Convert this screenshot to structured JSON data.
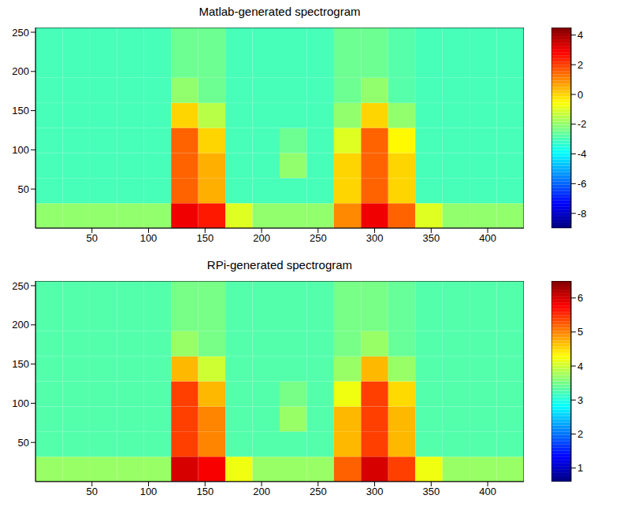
{
  "chart_data": [
    {
      "type": "heatmap",
      "title": "Matlab-generated spectrogram",
      "xlim": [
        0,
        432
      ],
      "xticks": [
        50,
        100,
        150,
        200,
        250,
        300,
        350,
        400
      ],
      "ylim": [
        0,
        256
      ],
      "yticks": [
        50,
        100,
        150,
        200,
        250
      ],
      "x_edges": [
        0,
        24,
        48,
        72,
        96,
        120,
        144,
        168,
        192,
        216,
        240,
        264,
        288,
        312,
        336,
        360,
        384,
        408,
        432
      ],
      "y_edges": [
        0,
        32,
        64,
        96,
        128,
        160,
        192,
        224,
        256
      ],
      "cells": [
        [
          -2,
          -2,
          -2,
          -2,
          -2,
          3,
          2.5,
          -1,
          -2,
          -2,
          -2,
          1,
          3,
          1.5,
          -1,
          -2,
          -2,
          -2
        ],
        [
          -3,
          -3,
          -3,
          -3,
          -3,
          1.5,
          0.5,
          -3,
          -3,
          -3,
          -3,
          0,
          1.5,
          0,
          -3,
          -3,
          -3,
          -3
        ],
        [
          -3,
          -3,
          -3,
          -3,
          -3,
          1.5,
          0.5,
          -3,
          -3,
          -2,
          -3,
          0,
          1.5,
          0,
          -3,
          -3,
          -3,
          -3
        ],
        [
          -3,
          -3,
          -3,
          -3,
          -3,
          1.5,
          0,
          -3,
          -3,
          -2.5,
          -3,
          -1,
          1.5,
          -0.5,
          -3,
          -3,
          -3,
          -3
        ],
        [
          -3,
          -3,
          -3,
          -3,
          -3,
          0,
          -1.5,
          -3,
          -3,
          -3,
          -3,
          -2,
          0,
          -2,
          -3,
          -3,
          -3,
          -3
        ],
        [
          -3,
          -3,
          -3,
          -3,
          -3,
          -2,
          -2.5,
          -3,
          -3,
          -3,
          -3,
          -2.5,
          -2,
          -2.8,
          -3,
          -3,
          -3,
          -3
        ],
        [
          -3,
          -3,
          -3,
          -3,
          -3,
          -2.5,
          -2.5,
          -3,
          -3,
          -3,
          -3,
          -2.5,
          -2.5,
          -2.8,
          -3,
          -3,
          -3,
          -3
        ],
        [
          -3,
          -3,
          -3,
          -3,
          -3,
          -2.5,
          -2.5,
          -3,
          -3,
          -3,
          -3,
          -2.5,
          -2.5,
          -2.8,
          -3,
          -3,
          -3,
          -3
        ]
      ],
      "colorbar_range": [
        -9,
        4.5
      ],
      "colorbar_ticks": [
        -8,
        -6,
        -4,
        -2,
        0,
        2,
        4
      ]
    },
    {
      "type": "heatmap",
      "title": "RPi-generated spectrogram",
      "xlim": [
        0,
        432
      ],
      "xticks": [
        50,
        100,
        150,
        200,
        250,
        300,
        350,
        400
      ],
      "ylim": [
        0,
        256
      ],
      "yticks": [
        50,
        100,
        150,
        200,
        250
      ],
      "x_edges": [
        0,
        24,
        48,
        72,
        96,
        120,
        144,
        168,
        192,
        216,
        240,
        264,
        288,
        312,
        336,
        360,
        384,
        408,
        432
      ],
      "y_edges": [
        0,
        32,
        64,
        96,
        128,
        160,
        192,
        224,
        256
      ],
      "cells": [
        [
          3.7,
          3.7,
          3.7,
          3.7,
          3.7,
          6.0,
          5.8,
          4.2,
          3.7,
          3.7,
          3.7,
          5.2,
          6.0,
          5.4,
          4.2,
          3.7,
          3.7,
          3.7
        ],
        [
          3.3,
          3.3,
          3.3,
          3.3,
          3.3,
          5.4,
          5.0,
          3.3,
          3.3,
          3.3,
          3.3,
          4.7,
          5.4,
          4.7,
          3.3,
          3.3,
          3.3,
          3.3
        ],
        [
          3.3,
          3.3,
          3.3,
          3.3,
          3.3,
          5.4,
          5.0,
          3.3,
          3.3,
          3.7,
          3.3,
          4.7,
          5.4,
          4.7,
          3.3,
          3.3,
          3.3,
          3.3
        ],
        [
          3.3,
          3.3,
          3.3,
          3.3,
          3.3,
          5.4,
          4.7,
          3.3,
          3.3,
          3.5,
          3.3,
          4.2,
          5.4,
          4.5,
          3.3,
          3.3,
          3.3,
          3.3
        ],
        [
          3.3,
          3.3,
          3.3,
          3.3,
          3.3,
          4.7,
          4.0,
          3.3,
          3.3,
          3.3,
          3.3,
          3.7,
          4.7,
          3.7,
          3.3,
          3.3,
          3.3,
          3.3
        ],
        [
          3.3,
          3.3,
          3.3,
          3.3,
          3.3,
          3.7,
          3.5,
          3.3,
          3.3,
          3.3,
          3.3,
          3.5,
          3.7,
          3.4,
          3.3,
          3.3,
          3.3,
          3.3
        ],
        [
          3.3,
          3.3,
          3.3,
          3.3,
          3.3,
          3.5,
          3.5,
          3.3,
          3.3,
          3.3,
          3.3,
          3.5,
          3.5,
          3.4,
          3.3,
          3.3,
          3.3,
          3.3
        ],
        [
          3.3,
          3.3,
          3.3,
          3.3,
          3.3,
          3.5,
          3.5,
          3.3,
          3.3,
          3.3,
          3.3,
          3.5,
          3.5,
          3.4,
          3.3,
          3.3,
          3.3,
          3.3
        ]
      ],
      "colorbar_range": [
        0.6,
        6.5
      ],
      "colorbar_ticks": [
        1,
        2,
        3,
        4,
        5,
        6
      ]
    }
  ]
}
